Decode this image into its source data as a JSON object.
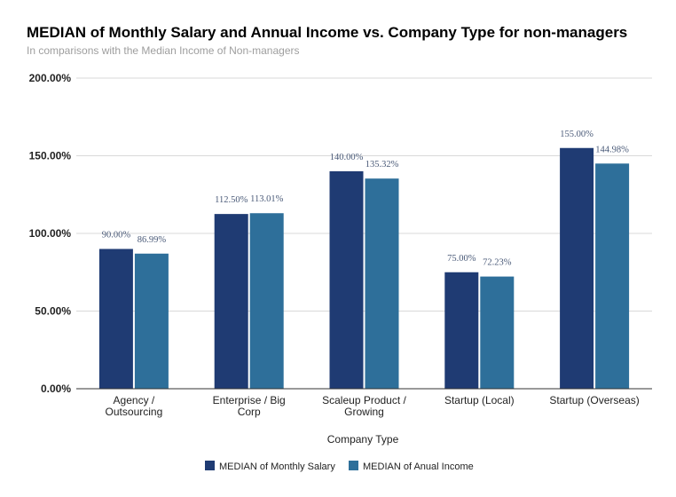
{
  "chart_data": {
    "type": "bar",
    "title": "MEDIAN of Monthly Salary and Annual Income vs. Company Type for non-managers",
    "subtitle": "In comparisons with the Median Income of Non-managers",
    "xlabel": "Company Type",
    "ylabel": "",
    "ylim": [
      0,
      200
    ],
    "yticks": [
      {
        "value": 0,
        "label": "0.00%"
      },
      {
        "value": 50,
        "label": "50.00%"
      },
      {
        "value": 100,
        "label": "100.00%"
      },
      {
        "value": 150,
        "label": "150.00%"
      },
      {
        "value": 200,
        "label": "200.00%"
      }
    ],
    "grid": true,
    "legend_position": "bottom",
    "categories": [
      [
        "Agency /",
        "Outsourcing"
      ],
      [
        "Enterprise / Big",
        "Corp"
      ],
      [
        "Scaleup Product /",
        "Growing"
      ],
      [
        "Startup (Local)"
      ],
      [
        "Startup (Overseas)"
      ]
    ],
    "series": [
      {
        "name": "MEDIAN of Monthly Salary",
        "color": "#1f3b73",
        "values": [
          90.0,
          112.5,
          140.0,
          75.0,
          155.0
        ],
        "labels": [
          "90.00%",
          "112.50%",
          "140.00%",
          "75.00%",
          "155.00%"
        ]
      },
      {
        "name": "MEDIAN of Anual Income",
        "color": "#2e6f9a",
        "values": [
          86.99,
          113.01,
          135.32,
          72.23,
          144.98
        ],
        "labels": [
          "86.99%",
          "113.01%",
          "135.32%",
          "72.23%",
          "144.98%"
        ]
      }
    ],
    "data_label_color": "#4a5a78"
  }
}
